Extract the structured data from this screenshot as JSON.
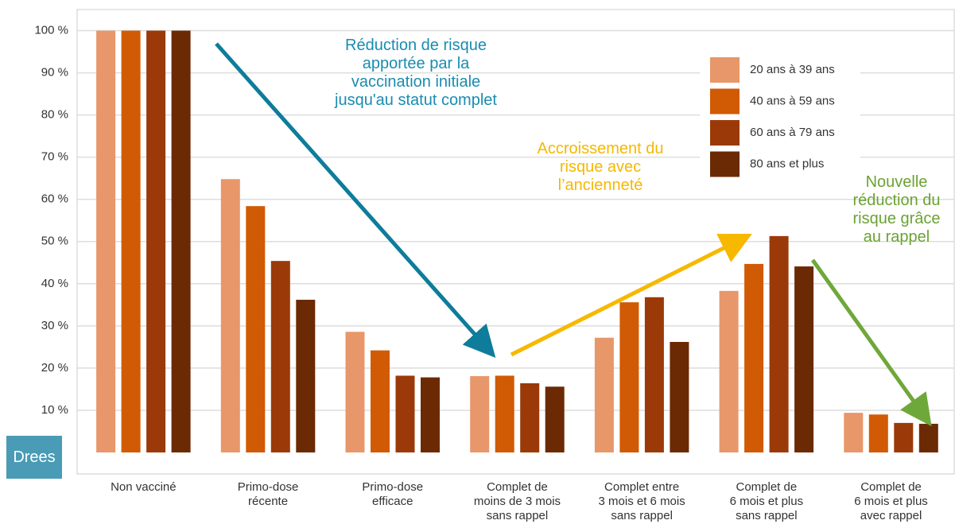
{
  "chart_data": {
    "type": "bar",
    "categories": [
      "Non vacciné",
      "Primo-dose\nrécente",
      "Primo-dose\nefficace",
      "Complet de\nmoins de 3 mois\nsans rappel",
      "Complet entre\n3 mois et 6 mois\nsans rappel",
      "Complet de\n6 mois et plus\nsans rappel",
      "Complet de\n6 mois et plus\navec rappel"
    ],
    "series": [
      {
        "name": "20 ans à 39 ans",
        "color": "#e8976a",
        "values": [
          100,
          64.8,
          28.6,
          18.1,
          27.2,
          38.3,
          9.4
        ]
      },
      {
        "name": "40 ans à 59 ans",
        "color": "#d15a04",
        "values": [
          100,
          58.4,
          24.2,
          18.2,
          35.6,
          44.7,
          9.0
        ]
      },
      {
        "name": "60 ans à 79 ans",
        "color": "#9b3a08",
        "values": [
          100,
          45.4,
          18.2,
          16.4,
          36.8,
          51.3,
          7.0
        ]
      },
      {
        "name": "80 ans et plus",
        "color": "#6b2a04",
        "values": [
          100,
          36.2,
          17.8,
          15.6,
          26.2,
          44.1,
          6.8
        ]
      }
    ],
    "ylim": [
      0,
      105
    ],
    "yticks": [
      {
        "value": 10,
        "label": "10 %"
      },
      {
        "value": 20,
        "label": "20 %"
      },
      {
        "value": 30,
        "label": "30 %"
      },
      {
        "value": 40,
        "label": "40 %"
      },
      {
        "value": 50,
        "label": "50 %"
      },
      {
        "value": 60,
        "label": "60 %"
      },
      {
        "value": 70,
        "label": "70 %"
      },
      {
        "value": 80,
        "label": "80 %"
      },
      {
        "value": 90,
        "label": "90 %"
      },
      {
        "value": 100,
        "label": "100 %"
      }
    ],
    "grid": true,
    "annotations": [
      {
        "text": "Réduction de risque\napportée par la\nvaccination initiale\njusqu'au statut complet",
        "color": "#1a8cb0"
      },
      {
        "text": "Accroissement du\nrisque avec\nl’ancienneté",
        "color": "#f5b800"
      },
      {
        "text": "Nouvelle\nréduction du\nrisque grâce\nau rappel",
        "color": "#6aa332"
      }
    ],
    "logo": "Drees"
  }
}
